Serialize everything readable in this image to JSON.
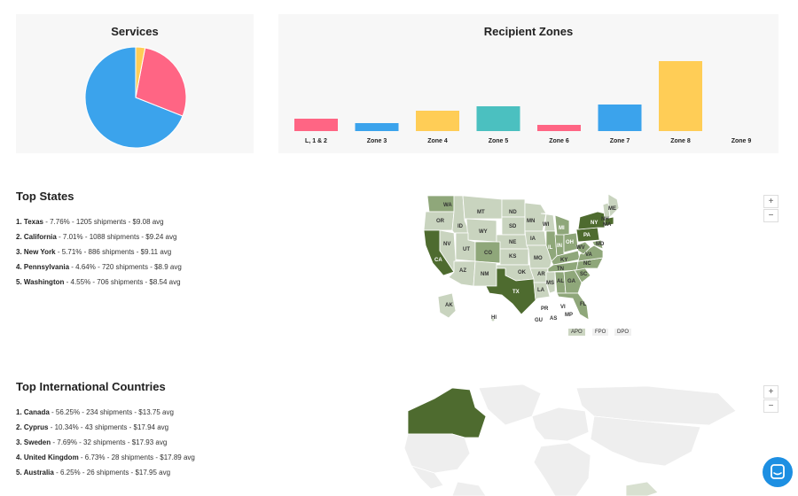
{
  "services": {
    "title": "Services",
    "chart_data": {
      "type": "pie",
      "slices": [
        {
          "value": 69,
          "color": "#3ba3ec"
        },
        {
          "value": 28,
          "color": "#ff6584"
        },
        {
          "value": 3,
          "color": "#ffcd56"
        }
      ]
    }
  },
  "zones": {
    "title": "Recipient Zones",
    "chart_data": {
      "type": "bar",
      "categories": [
        "L, 1 & 2",
        "Zone 3",
        "Zone 4",
        "Zone 5",
        "Zone 6",
        "Zone 7",
        "Zone 8",
        "Zone 9"
      ],
      "values": [
        14,
        9,
        23,
        28,
        7,
        30,
        79,
        0
      ],
      "colors": [
        "#ff6584",
        "#3ba3ec",
        "#ffcd56",
        "#4bc0c0",
        "#ff6584",
        "#3ba3ec",
        "#ffcd56",
        "#4bc0c0"
      ],
      "ylim": [
        0,
        80
      ]
    }
  },
  "top_states": {
    "title": "Top States",
    "items": [
      {
        "rank": "1.",
        "name": "Texas",
        "detail": " - 7.76% - 1205 shipments - $9.08 avg"
      },
      {
        "rank": "2.",
        "name": "California",
        "detail": " - 7.01% - 1088 shipments - $9.24 avg"
      },
      {
        "rank": "3.",
        "name": "New York",
        "detail": " - 5.71% - 886 shipments - $9.11 avg"
      },
      {
        "rank": "4.",
        "name": "Pennsylvania",
        "detail": " - 4.64% - 720 shipments - $8.9 avg"
      },
      {
        "rank": "5.",
        "name": "Washington",
        "detail": " - 4.55% - 706 shipments - $8.54 avg"
      }
    ]
  },
  "top_countries": {
    "title": "Top International Countries",
    "items": [
      {
        "rank": "1.",
        "name": "Canada",
        "detail": " - 56.25% - 234 shipments - $13.75 avg"
      },
      {
        "rank": "2.",
        "name": "Cyprus",
        "detail": " - 10.34% - 43 shipments - $17.94 avg"
      },
      {
        "rank": "3.",
        "name": "Sweden",
        "detail": " - 7.69% - 32 shipments - $17.93 avg"
      },
      {
        "rank": "4.",
        "name": "United Kingdom",
        "detail": " - 6.73% - 28 shipments - $17.89 avg"
      },
      {
        "rank": "5.",
        "name": "Australia",
        "detail": " - 6.25% - 26 shipments - $17.95 avg"
      }
    ]
  },
  "us_map": {
    "states": [
      "WA",
      "OR",
      "CA",
      "ID",
      "NV",
      "MT",
      "WY",
      "UT",
      "AZ",
      "CO",
      "NM",
      "ND",
      "SD",
      "NE",
      "KS",
      "OK",
      "TX",
      "MN",
      "IA",
      "MO",
      "AR",
      "LA",
      "WI",
      "IL",
      "MI",
      "IN",
      "OH",
      "KY",
      "TN",
      "MS",
      "AL",
      "GA",
      "FL",
      "SC",
      "NC",
      "VA",
      "WV",
      "PA",
      "NY",
      "ME",
      "NH",
      "MA",
      "MD",
      "AK",
      "HI"
    ],
    "territories": [
      "PR",
      "VI",
      "GU",
      "AS",
      "MP"
    ],
    "military": [
      "APO",
      "FPO",
      "DPO"
    ]
  },
  "zoom": {
    "in": "+",
    "out": "−"
  },
  "colors": {
    "map_dark": "#4e6b2f",
    "map_mid": "#8fa77a",
    "map_light": "#c9d4bf",
    "map_empty": "#eeeeee",
    "chat": "#1d8fe2"
  }
}
